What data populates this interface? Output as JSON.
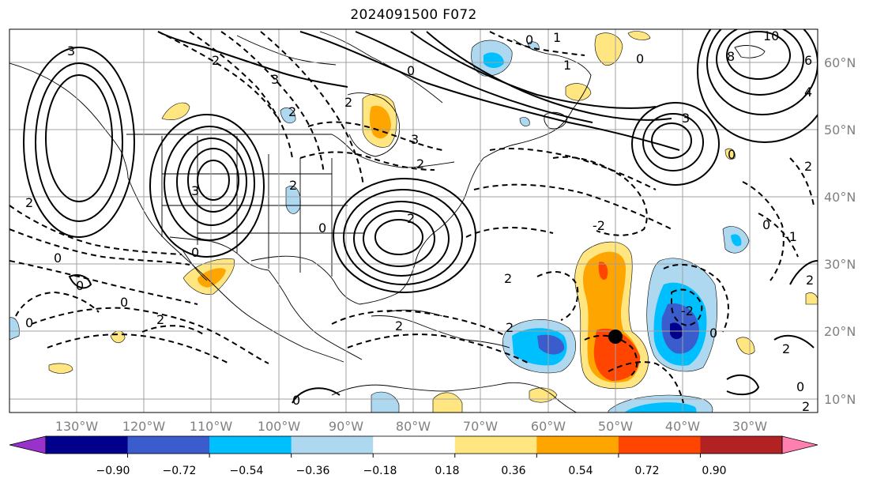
{
  "title": "2024091500 F072",
  "map": {
    "projection": "PlateCarree",
    "lon_range": [
      -140,
      -20
    ],
    "lat_range": [
      8,
      65
    ],
    "longitude_ticks": [
      "130°W",
      "120°W",
      "110°W",
      "100°W",
      "90°W",
      "80°W",
      "70°W",
      "60°W",
      "50°W",
      "40°W",
      "30°W"
    ],
    "latitude_ticks": [
      "60°N",
      "50°N",
      "40°N",
      "30°N",
      "20°N",
      "10°N"
    ],
    "gridlines": true,
    "marker": {
      "lon": -50,
      "lat": 19.5,
      "color": "#000000"
    }
  },
  "contour_labels": [
    {
      "text": "3"
    },
    {
      "text": "2"
    },
    {
      "text": "2"
    },
    {
      "text": "3"
    },
    {
      "text": "2"
    },
    {
      "text": "3"
    },
    {
      "text": "0"
    },
    {
      "text": "1"
    },
    {
      "text": "1"
    },
    {
      "text": "0"
    },
    {
      "text": "10"
    },
    {
      "text": "8"
    },
    {
      "text": "6"
    },
    {
      "text": "4"
    },
    {
      "text": "3"
    },
    {
      "text": "3"
    },
    {
      "text": "0"
    },
    {
      "text": "2"
    },
    {
      "text": "2"
    },
    {
      "text": "2"
    },
    {
      "text": "0"
    },
    {
      "text": "2"
    },
    {
      "text": "0"
    },
    {
      "text": "0"
    },
    {
      "text": "0"
    },
    {
      "text": "2"
    },
    {
      "text": "0"
    },
    {
      "text": "2"
    },
    {
      "text": "0"
    },
    {
      "text": "-2"
    },
    {
      "text": "2"
    },
    {
      "text": "0"
    },
    {
      "text": "-1"
    },
    {
      "text": "-2"
    },
    {
      "text": "0"
    },
    {
      "text": "0"
    },
    {
      "text": "2"
    },
    {
      "text": "2"
    },
    {
      "text": "2"
    },
    {
      "text": "0"
    },
    {
      "text": "2"
    },
    {
      "text": "2"
    },
    {
      "text": "0"
    }
  ],
  "colorbar": {
    "ticks": [
      "−0.90",
      "−0.72",
      "−0.54",
      "−0.36",
      "−0.18",
      "0.18",
      "0.36",
      "0.54",
      "0.72",
      "0.90"
    ],
    "colors": [
      "#9932cc",
      "#00008b",
      "#3a5ccc",
      "#00bfff",
      "#add8f0",
      "#ffffff",
      "#ffe680",
      "#ffa500",
      "#ff4500",
      "#b22222",
      "#ff80b0"
    ],
    "extend": "both"
  }
}
